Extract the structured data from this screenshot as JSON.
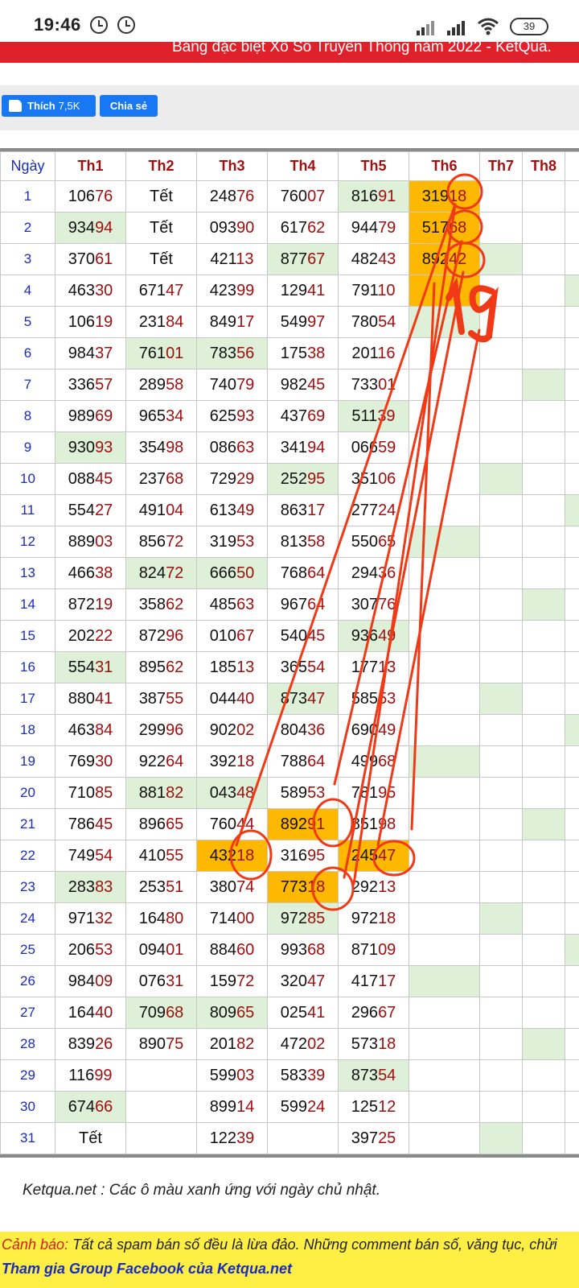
{
  "status": {
    "time": "19:46",
    "battery": "39",
    "icons": [
      "alarm-icon",
      "alarm-icon",
      "signal-icon",
      "signal-icon",
      "wifi-icon",
      "battery-icon"
    ]
  },
  "banner": {
    "text": "Bảng đặc biệt Xổ Số Truyền Thống năm 2022 - KetQua."
  },
  "social": {
    "like_label": "Thích",
    "like_count": "7,5K",
    "share_label": "Chia sẻ"
  },
  "table": {
    "day_header": "Ngày",
    "months": [
      "Th1",
      "Th2",
      "Th3",
      "Th4",
      "Th5",
      "Th6",
      "Th7",
      "Th8"
    ],
    "rows": [
      {
        "day": "1",
        "cells": [
          "10676",
          "Tết",
          "24876",
          "76007",
          "81691",
          "31918",
          "",
          ""
        ],
        "green": [
          4
        ],
        "orange": [
          5
        ]
      },
      {
        "day": "2",
        "cells": [
          "93494",
          "Tết",
          "09390",
          "61762",
          "94479",
          "51768",
          "",
          ""
        ],
        "green": [
          0
        ],
        "orange": [
          5
        ]
      },
      {
        "day": "3",
        "cells": [
          "37061",
          "Tết",
          "42113",
          "87767",
          "48243",
          "89242",
          "",
          ""
        ],
        "green": [
          3,
          6
        ],
        "orange": [
          5
        ]
      },
      {
        "day": "4",
        "cells": [
          "46330",
          "67147",
          "42399",
          "12941",
          "79110",
          "",
          "",
          ""
        ],
        "green": [
          8
        ],
        "orange": [
          5
        ]
      },
      {
        "day": "5",
        "cells": [
          "10619",
          "23184",
          "84917",
          "54997",
          "78054",
          "",
          "",
          ""
        ],
        "green": [
          5
        ],
        "orange": []
      },
      {
        "day": "6",
        "cells": [
          "98437",
          "76101",
          "78356",
          "17538",
          "20116",
          "",
          "",
          ""
        ],
        "green": [
          1,
          2
        ],
        "orange": []
      },
      {
        "day": "7",
        "cells": [
          "33657",
          "28958",
          "74079",
          "98245",
          "73301",
          "",
          "",
          ""
        ],
        "green": [
          7
        ],
        "orange": []
      },
      {
        "day": "8",
        "cells": [
          "98969",
          "96534",
          "62593",
          "43769",
          "51139",
          "",
          "",
          ""
        ],
        "green": [
          4
        ],
        "orange": []
      },
      {
        "day": "9",
        "cells": [
          "93093",
          "35498",
          "08663",
          "34194",
          "06659",
          "",
          "",
          ""
        ],
        "green": [
          0
        ],
        "orange": []
      },
      {
        "day": "10",
        "cells": [
          "08845",
          "23768",
          "72929",
          "25295",
          "35106",
          "",
          "",
          ""
        ],
        "green": [
          3,
          6
        ],
        "orange": []
      },
      {
        "day": "11",
        "cells": [
          "55427",
          "49104",
          "61349",
          "86317",
          "27724",
          "",
          "",
          ""
        ],
        "green": [
          8
        ],
        "orange": []
      },
      {
        "day": "12",
        "cells": [
          "88903",
          "85672",
          "31953",
          "81358",
          "55065",
          "",
          "",
          ""
        ],
        "green": [
          5
        ],
        "orange": []
      },
      {
        "day": "13",
        "cells": [
          "46638",
          "82472",
          "66650",
          "76864",
          "29436",
          "",
          "",
          ""
        ],
        "green": [
          1,
          2
        ],
        "orange": []
      },
      {
        "day": "14",
        "cells": [
          "87219",
          "35862",
          "48563",
          "96764",
          "30776",
          "",
          "",
          ""
        ],
        "green": [
          7
        ],
        "orange": []
      },
      {
        "day": "15",
        "cells": [
          "20222",
          "87296",
          "01067",
          "54045",
          "93649",
          "",
          "",
          ""
        ],
        "green": [
          4
        ],
        "orange": []
      },
      {
        "day": "16",
        "cells": [
          "55431",
          "89562",
          "18513",
          "36554",
          "17713",
          "",
          "",
          ""
        ],
        "green": [
          0
        ],
        "orange": []
      },
      {
        "day": "17",
        "cells": [
          "88041",
          "38755",
          "04440",
          "87347",
          "58553",
          "",
          "",
          ""
        ],
        "green": [
          3,
          6
        ],
        "orange": []
      },
      {
        "day": "18",
        "cells": [
          "46384",
          "29996",
          "90202",
          "80436",
          "69049",
          "",
          "",
          ""
        ],
        "green": [
          8
        ],
        "orange": []
      },
      {
        "day": "19",
        "cells": [
          "76930",
          "92264",
          "39218",
          "78864",
          "49968",
          "",
          "",
          ""
        ],
        "green": [
          5
        ],
        "orange": []
      },
      {
        "day": "20",
        "cells": [
          "71085",
          "88182",
          "04348",
          "58953",
          "78195",
          "",
          "",
          ""
        ],
        "green": [
          1,
          2
        ],
        "orange": []
      },
      {
        "day": "21",
        "cells": [
          "78645",
          "89665",
          "76044",
          "89291",
          "85198",
          "",
          "",
          ""
        ],
        "green": [
          7
        ],
        "orange": [
          3
        ]
      },
      {
        "day": "22",
        "cells": [
          "74954",
          "41055",
          "43218",
          "31695",
          "24547",
          "",
          "",
          ""
        ],
        "green": [],
        "orange": [
          2,
          4
        ]
      },
      {
        "day": "23",
        "cells": [
          "28383",
          "25351",
          "38074",
          "77318",
          "29213",
          "",
          "",
          ""
        ],
        "green": [
          0
        ],
        "orange": [
          3
        ]
      },
      {
        "day": "24",
        "cells": [
          "97132",
          "16480",
          "71400",
          "97285",
          "97218",
          "",
          "",
          ""
        ],
        "green": [
          3,
          6
        ],
        "orange": []
      },
      {
        "day": "25",
        "cells": [
          "20653",
          "09401",
          "88460",
          "99368",
          "87109",
          "",
          "",
          ""
        ],
        "green": [
          8
        ],
        "orange": []
      },
      {
        "day": "26",
        "cells": [
          "98409",
          "07631",
          "15972",
          "32047",
          "41717",
          "",
          "",
          ""
        ],
        "green": [
          5
        ],
        "orange": []
      },
      {
        "day": "27",
        "cells": [
          "16440",
          "70968",
          "80965",
          "02541",
          "29667",
          "",
          "",
          ""
        ],
        "green": [
          1,
          2
        ],
        "orange": []
      },
      {
        "day": "28",
        "cells": [
          "83926",
          "89075",
          "20182",
          "47202",
          "57318",
          "",
          "",
          ""
        ],
        "green": [
          7
        ],
        "orange": []
      },
      {
        "day": "29",
        "cells": [
          "11699",
          "",
          "59903",
          "58339",
          "87354",
          "",
          "",
          ""
        ],
        "green": [
          4
        ],
        "orange": []
      },
      {
        "day": "30",
        "cells": [
          "67466",
          "",
          "89914",
          "59924",
          "12512",
          "",
          "",
          ""
        ],
        "green": [
          0
        ],
        "orange": []
      },
      {
        "day": "31",
        "cells": [
          "Tết",
          "",
          "12239",
          "",
          "39725",
          "",
          "",
          ""
        ],
        "green": [
          6
        ],
        "orange": []
      }
    ]
  },
  "annotation": {
    "handwritten": "19",
    "color": "#f03a17"
  },
  "footer": {
    "note": "Ketqua.net : Các ô màu xanh ứng với ngày chủ nhật.",
    "warning_label": "Cảnh báo:",
    "warning_text": " Tất cả spam bán số đều là lừa đảo. Những comment bán số, văng tục, chửi",
    "facebook_link": "Tham gia Group Facebook của Ketqua.net"
  },
  "colors": {
    "green_cell": "#dff0d8",
    "orange_cell": "#ffb800",
    "banner_red": "#e0202a",
    "facebook_blue": "#1877f2",
    "warning_yellow": "#ffee44"
  }
}
